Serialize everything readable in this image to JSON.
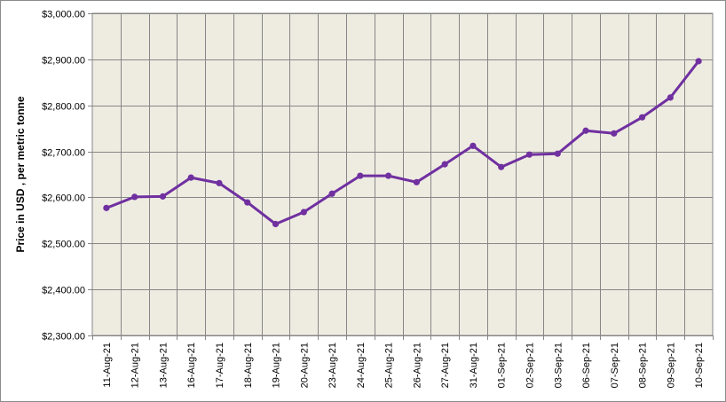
{
  "chart_data": {
    "type": "line",
    "title": "",
    "xlabel": "",
    "ylabel": "Price in USD , per metric tonne",
    "ylim": [
      2300,
      3000
    ],
    "yticks": [
      2300,
      2400,
      2500,
      2600,
      2700,
      2800,
      2900,
      3000
    ],
    "ytick_labels": [
      "$2,300.00",
      "$2,400.00",
      "$2,500.00",
      "$2,600.00",
      "$2,700.00",
      "$2,800.00",
      "$2,900.00",
      "$3,000.00"
    ],
    "grid": true,
    "legend": "none",
    "categories": [
      "11-Aug-21",
      "12-Aug-21",
      "13-Aug-21",
      "16-Aug-21",
      "17-Aug-21",
      "18-Aug-21",
      "19-Aug-21",
      "20-Aug-21",
      "23-Aug-21",
      "24-Aug-21",
      "25-Aug-21",
      "26-Aug-21",
      "27-Aug-21",
      "31-Aug-21",
      "01-Sep-21",
      "02-Sep-21",
      "03-Sep-21",
      "06-Sep-21",
      "07-Sep-21",
      "08-Sep-21",
      "09-Sep-21",
      "10-Sep-21"
    ],
    "series": [
      {
        "values": [
          2577,
          2601,
          2602,
          2643,
          2631,
          2589,
          2542,
          2568,
          2608,
          2647,
          2647,
          2633,
          2672,
          2712,
          2666,
          2693,
          2695,
          2745,
          2739,
          2774,
          2817,
          2896
        ],
        "color": "#7030a0"
      }
    ],
    "colors": {
      "plot_background": "#eeece1",
      "grid": "#868686",
      "line": "#7030a0"
    }
  }
}
